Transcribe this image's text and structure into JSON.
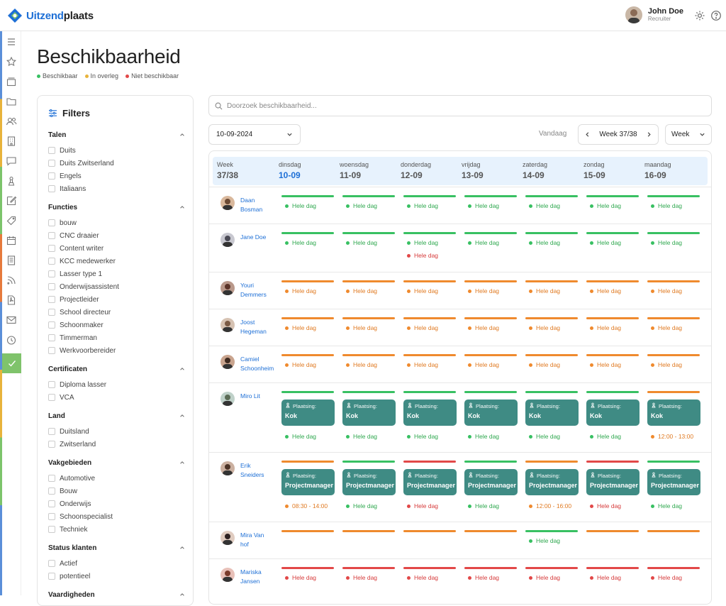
{
  "app": {
    "logo_text_a": "Uitzend",
    "logo_text_b": "plaats"
  },
  "user": {
    "name": "John Doe",
    "role": "Recruiter"
  },
  "page": {
    "title": "Beschikbaarheid"
  },
  "legend": [
    {
      "label": "Beschikbaar",
      "color": "#38c062"
    },
    {
      "label": "In overleg",
      "color": "#e8b33b"
    },
    {
      "label": "Niet beschikbaar",
      "color": "#e24848"
    }
  ],
  "filters": {
    "title": "Filters",
    "sections": [
      {
        "title": "Talen",
        "options": [
          "Duits",
          "Duits Zwitserland",
          "Engels",
          "Italiaans"
        ]
      },
      {
        "title": "Functies",
        "options": [
          "bouw",
          "CNC draaier",
          "Content writer",
          "KCC medewerker",
          "Lasser type 1",
          "Onderwijsassistent",
          "Projectleider",
          "School directeur",
          "Schoonmaker",
          "Timmerman",
          "Werkvoorbereider"
        ]
      },
      {
        "title": "Certificaten",
        "options": [
          "Diploma lasser",
          "VCA"
        ]
      },
      {
        "title": "Land",
        "options": [
          "Duitsland",
          "Zwitserland"
        ]
      },
      {
        "title": "Vakgebieden",
        "options": [
          "Automotive",
          "Bouw",
          "Onderwijs",
          "Schoonspecialist",
          "Techniek"
        ]
      },
      {
        "title": "Status klanten",
        "options": [
          "Actief",
          "potentieel"
        ]
      },
      {
        "title": "Vaardigheden",
        "options": []
      }
    ]
  },
  "search": {
    "placeholder": "Doorzoek beschikbaarheid..."
  },
  "controls": {
    "date": "10-09-2024",
    "today": "Vandaag",
    "week_label": "Week 37/38",
    "view": "Week"
  },
  "grid": {
    "week_head": {
      "label": "Week",
      "value": "37/38"
    },
    "days": [
      {
        "day": "dinsdag",
        "date": "10-09"
      },
      {
        "day": "woensdag",
        "date": "11-09"
      },
      {
        "day": "donderdag",
        "date": "12-09"
      },
      {
        "day": "vrijdag",
        "date": "13-09"
      },
      {
        "day": "zaterdag",
        "date": "14-09"
      },
      {
        "day": "zondag",
        "date": "15-09"
      },
      {
        "day": "maandag",
        "date": "16-09"
      }
    ],
    "placement_label": "Plaatsing:",
    "people": [
      {
        "first": "Daan",
        "last": "Bosman",
        "cells": [
          {
            "bar": "g",
            "items": [
              {
                "c": "g",
                "t": "Hele dag"
              }
            ]
          },
          {
            "bar": "g",
            "items": [
              {
                "c": "g",
                "t": "Hele dag"
              }
            ]
          },
          {
            "bar": "g",
            "items": [
              {
                "c": "g",
                "t": "Hele dag"
              }
            ]
          },
          {
            "bar": "g",
            "items": [
              {
                "c": "g",
                "t": "Hele dag"
              }
            ]
          },
          {
            "bar": "g",
            "items": [
              {
                "c": "g",
                "t": "Hele dag"
              }
            ]
          },
          {
            "bar": "g",
            "items": [
              {
                "c": "g",
                "t": "Hele dag"
              }
            ]
          },
          {
            "bar": "g",
            "items": [
              {
                "c": "g",
                "t": "Hele dag"
              }
            ]
          }
        ]
      },
      {
        "first": "Jane Doe",
        "last": "",
        "cells": [
          {
            "bar": "g",
            "items": [
              {
                "c": "g",
                "t": "Hele dag"
              }
            ]
          },
          {
            "bar": "g",
            "items": [
              {
                "c": "g",
                "t": "Hele dag"
              }
            ]
          },
          {
            "bar": "g",
            "items": [
              {
                "c": "g",
                "t": "Hele dag"
              },
              {
                "c": "r",
                "t": "Hele dag"
              }
            ]
          },
          {
            "bar": "g",
            "items": [
              {
                "c": "g",
                "t": "Hele dag"
              }
            ]
          },
          {
            "bar": "g",
            "items": [
              {
                "c": "g",
                "t": "Hele dag"
              }
            ]
          },
          {
            "bar": "g",
            "items": [
              {
                "c": "g",
                "t": "Hele dag"
              }
            ]
          },
          {
            "bar": "g",
            "items": [
              {
                "c": "g",
                "t": "Hele dag"
              }
            ]
          }
        ]
      },
      {
        "first": "Youri",
        "last": "Demmers",
        "cells": [
          {
            "bar": "o",
            "items": [
              {
                "c": "o",
                "t": "Hele dag"
              }
            ]
          },
          {
            "bar": "o",
            "items": [
              {
                "c": "o",
                "t": "Hele dag"
              }
            ]
          },
          {
            "bar": "o",
            "items": [
              {
                "c": "o",
                "t": "Hele dag"
              }
            ]
          },
          {
            "bar": "o",
            "items": [
              {
                "c": "o",
                "t": "Hele dag"
              }
            ]
          },
          {
            "bar": "o",
            "items": [
              {
                "c": "o",
                "t": "Hele dag"
              }
            ]
          },
          {
            "bar": "o",
            "items": [
              {
                "c": "o",
                "t": "Hele dag"
              }
            ]
          },
          {
            "bar": "o",
            "items": [
              {
                "c": "o",
                "t": "Hele dag"
              }
            ]
          }
        ]
      },
      {
        "first": "Joost",
        "last": "Hegeman",
        "cells": [
          {
            "bar": "o",
            "items": [
              {
                "c": "o",
                "t": "Hele dag"
              }
            ]
          },
          {
            "bar": "o",
            "items": [
              {
                "c": "o",
                "t": "Hele dag"
              }
            ]
          },
          {
            "bar": "o",
            "items": [
              {
                "c": "o",
                "t": "Hele dag"
              }
            ]
          },
          {
            "bar": "o",
            "items": [
              {
                "c": "o",
                "t": "Hele dag"
              }
            ]
          },
          {
            "bar": "o",
            "items": [
              {
                "c": "o",
                "t": "Hele dag"
              }
            ]
          },
          {
            "bar": "o",
            "items": [
              {
                "c": "o",
                "t": "Hele dag"
              }
            ]
          },
          {
            "bar": "o",
            "items": [
              {
                "c": "o",
                "t": "Hele dag"
              }
            ]
          }
        ]
      },
      {
        "first": "Camiel",
        "last": "Schoonheim",
        "cells": [
          {
            "bar": "o",
            "items": [
              {
                "c": "o",
                "t": "Hele dag"
              }
            ]
          },
          {
            "bar": "o",
            "items": [
              {
                "c": "o",
                "t": "Hele dag"
              }
            ]
          },
          {
            "bar": "o",
            "items": [
              {
                "c": "o",
                "t": "Hele dag"
              }
            ]
          },
          {
            "bar": "o",
            "items": [
              {
                "c": "o",
                "t": "Hele dag"
              }
            ]
          },
          {
            "bar": "o",
            "items": [
              {
                "c": "o",
                "t": "Hele dag"
              }
            ]
          },
          {
            "bar": "o",
            "items": [
              {
                "c": "o",
                "t": "Hele dag"
              }
            ]
          },
          {
            "bar": "o",
            "items": [
              {
                "c": "o",
                "t": "Hele dag"
              }
            ]
          }
        ]
      },
      {
        "first": "Miro Lit",
        "last": "",
        "cells": [
          {
            "bar": "g",
            "place": "Kok",
            "items": [
              {
                "c": "g",
                "t": "Hele dag"
              }
            ]
          },
          {
            "bar": "g",
            "place": "Kok",
            "items": [
              {
                "c": "g",
                "t": "Hele dag"
              }
            ]
          },
          {
            "bar": "g",
            "place": "Kok",
            "items": [
              {
                "c": "g",
                "t": "Hele dag"
              }
            ]
          },
          {
            "bar": "g",
            "place": "Kok",
            "items": [
              {
                "c": "g",
                "t": "Hele dag"
              }
            ]
          },
          {
            "bar": "g",
            "place": "Kok",
            "items": [
              {
                "c": "g",
                "t": "Hele dag"
              }
            ]
          },
          {
            "bar": "g",
            "place": "Kok",
            "items": [
              {
                "c": "g",
                "t": "Hele dag"
              }
            ]
          },
          {
            "bar": "o",
            "place": "Kok",
            "items": [
              {
                "c": "o",
                "t": "12:00 - 13:00"
              }
            ]
          }
        ]
      },
      {
        "first": "Erik",
        "last": "Sneiders",
        "cells": [
          {
            "bar": "o",
            "place": "Projectmanager",
            "items": [
              {
                "c": "o",
                "t": "08:30 - 14:00"
              }
            ]
          },
          {
            "bar": "g",
            "place": "Projectmanager",
            "items": [
              {
                "c": "g",
                "t": "Hele dag"
              }
            ]
          },
          {
            "bar": "r",
            "place": "Projectmanager",
            "items": [
              {
                "c": "r",
                "t": "Hele dag"
              }
            ]
          },
          {
            "bar": "g",
            "place": "Projectmanager",
            "items": [
              {
                "c": "g",
                "t": "Hele dag"
              }
            ]
          },
          {
            "bar": "o",
            "place": "Projectmanager",
            "items": [
              {
                "c": "o",
                "t": "12:00 - 16:00"
              }
            ]
          },
          {
            "bar": "r",
            "place": "Projectmanager",
            "items": [
              {
                "c": "r",
                "t": "Hele dag"
              }
            ]
          },
          {
            "bar": "g",
            "place": "Projectmanager",
            "items": [
              {
                "c": "g",
                "t": "Hele dag"
              }
            ]
          }
        ]
      },
      {
        "first": "Mira Van",
        "last": "hof",
        "cells": [
          {
            "bar": "o",
            "items": []
          },
          {
            "bar": "o",
            "items": []
          },
          {
            "bar": "o",
            "items": []
          },
          {
            "bar": "o",
            "items": []
          },
          {
            "bar": "g",
            "items": [
              {
                "c": "g",
                "t": "Hele dag"
              }
            ]
          },
          {
            "bar": "o",
            "items": []
          },
          {
            "bar": "o",
            "items": []
          }
        ]
      },
      {
        "first": "Mariska",
        "last": "Jansen",
        "cells": [
          {
            "bar": "r",
            "items": [
              {
                "c": "r",
                "t": "Hele dag"
              }
            ]
          },
          {
            "bar": "r",
            "items": [
              {
                "c": "r",
                "t": "Hele dag"
              }
            ]
          },
          {
            "bar": "r",
            "items": [
              {
                "c": "r",
                "t": "Hele dag"
              }
            ]
          },
          {
            "bar": "r",
            "items": [
              {
                "c": "r",
                "t": "Hele dag"
              }
            ]
          },
          {
            "bar": "r",
            "items": [
              {
                "c": "r",
                "t": "Hele dag"
              }
            ]
          },
          {
            "bar": "r",
            "items": [
              {
                "c": "r",
                "t": "Hele dag"
              }
            ]
          },
          {
            "bar": "r",
            "items": [
              {
                "c": "r",
                "t": "Hele dag"
              }
            ]
          }
        ]
      }
    ]
  }
}
